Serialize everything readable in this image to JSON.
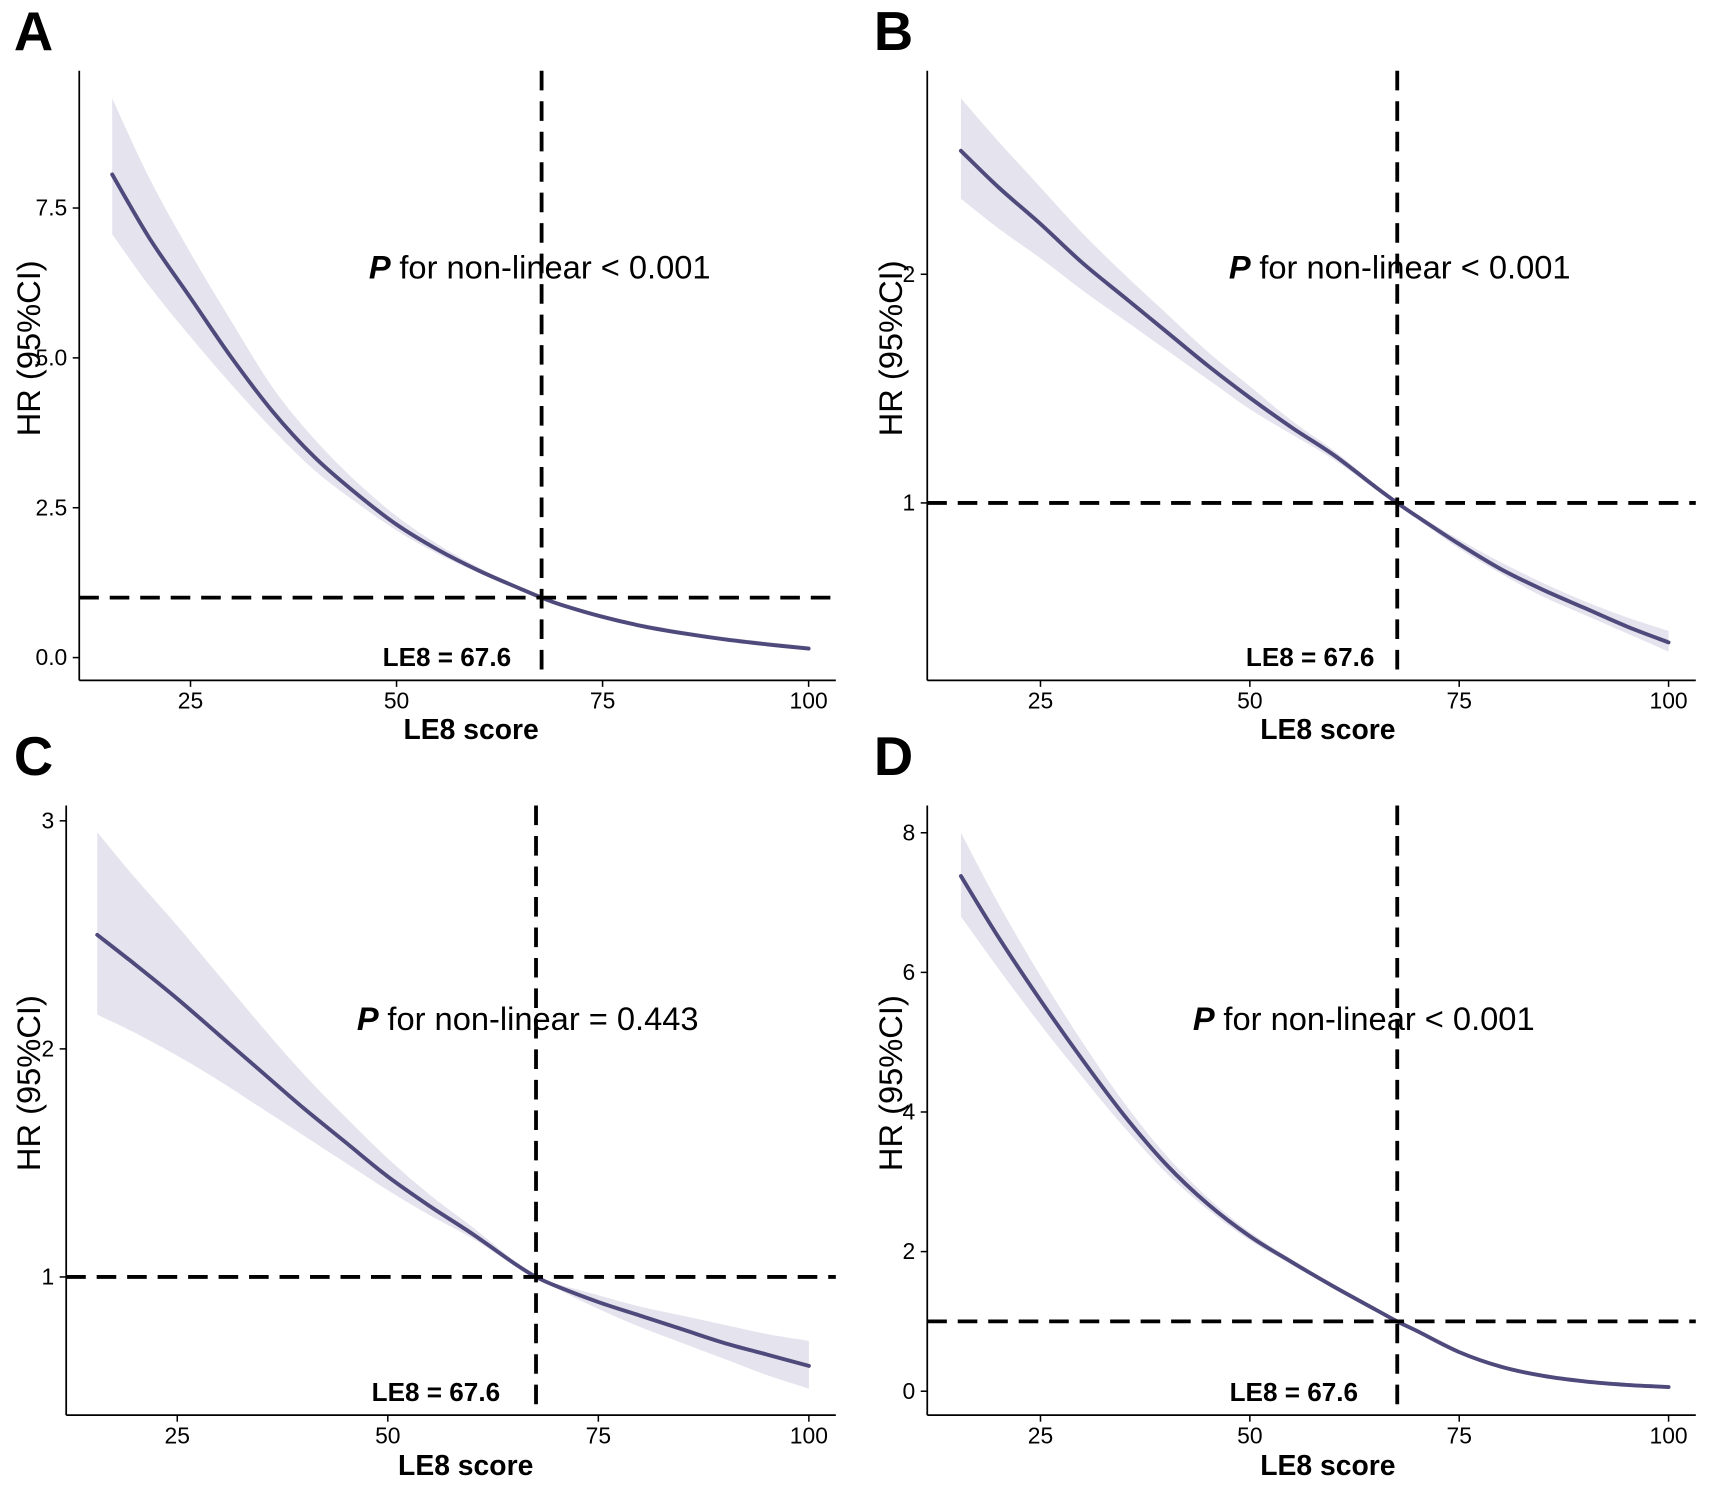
{
  "chart_data": [
    {
      "panel": "A",
      "type": "line",
      "xlabel": "LE8 score",
      "ylabel": "HR (95%CI)",
      "xlim": [
        11.5,
        103.3
      ],
      "ylim": [
        -0.38,
        9.79
      ],
      "xticks": [
        25,
        50,
        75,
        100
      ],
      "xtick_labels": [
        "25",
        "50",
        "75",
        "100"
      ],
      "yticks": [
        0,
        2.5,
        5,
        7.5
      ],
      "ytick_labels": [
        "0.0",
        "2.5",
        "5.0",
        "7.5"
      ],
      "reference": {
        "x": 67.6,
        "y": 1
      },
      "annotation": {
        "p_symbol": "P",
        "p_text": "for non-linear < 0.001",
        "cutoff_label": "LE8 = 67.6"
      },
      "series": [
        {
          "name": "HR",
          "color": "#4f4a7c",
          "band_color": "#e5e3ed",
          "x": [
            15.5,
            20,
            25,
            30,
            35,
            40,
            45,
            50,
            55,
            60,
            65,
            67.6,
            70,
            75,
            80,
            85,
            90,
            95,
            100
          ],
          "y": [
            8.06,
            7.0,
            6.0,
            5.0,
            4.1,
            3.35,
            2.75,
            2.22,
            1.8,
            1.45,
            1.15,
            1.0,
            0.88,
            0.68,
            0.52,
            0.4,
            0.3,
            0.22,
            0.15
          ],
          "lower": [
            7.06,
            6.2,
            5.35,
            4.55,
            3.8,
            3.13,
            2.6,
            2.12,
            1.73,
            1.41,
            1.13,
            1.0,
            0.86,
            0.65,
            0.49,
            0.37,
            0.27,
            0.19,
            0.12
          ],
          "upper": [
            9.33,
            8.0,
            6.75,
            5.6,
            4.5,
            3.65,
            2.95,
            2.36,
            1.89,
            1.5,
            1.17,
            1.0,
            0.9,
            0.71,
            0.56,
            0.44,
            0.34,
            0.26,
            0.19
          ]
        }
      ]
    },
    {
      "panel": "B",
      "type": "line",
      "xlabel": "LE8 score",
      "ylabel": "HR (95%CI)",
      "xlim": [
        11.48,
        103.25
      ],
      "ylim": [
        0.224,
        2.89
      ],
      "xticks": [
        25,
        50,
        75,
        100
      ],
      "xtick_labels": [
        "25",
        "50",
        "75",
        "100"
      ],
      "yticks": [
        1,
        2
      ],
      "ytick_labels": [
        "1",
        "2"
      ],
      "reference": {
        "x": 67.6,
        "y": 1
      },
      "annotation": {
        "p_symbol": "P",
        "p_text": "for non-linear < 0.001",
        "cutoff_label": "LE8 = 67.6"
      },
      "series": [
        {
          "name": "HR",
          "color": "#4f4a7c",
          "band_color": "#e5e3ed",
          "x": [
            15.5,
            20,
            25,
            30,
            35,
            40,
            45,
            50,
            55,
            60,
            65,
            67.6,
            70,
            75,
            80,
            85,
            90,
            95,
            100
          ],
          "y": [
            2.54,
            2.38,
            2.22,
            2.05,
            1.9,
            1.75,
            1.6,
            1.46,
            1.33,
            1.21,
            1.07,
            1.0,
            0.94,
            0.82,
            0.71,
            0.62,
            0.54,
            0.46,
            0.39
          ],
          "lower": [
            2.33,
            2.2,
            2.07,
            1.93,
            1.8,
            1.67,
            1.54,
            1.41,
            1.3,
            1.19,
            1.06,
            1.0,
            0.93,
            0.8,
            0.69,
            0.59,
            0.51,
            0.43,
            0.35
          ],
          "upper": [
            2.77,
            2.58,
            2.38,
            2.18,
            2.0,
            1.83,
            1.66,
            1.51,
            1.36,
            1.23,
            1.08,
            1.0,
            0.95,
            0.84,
            0.74,
            0.65,
            0.57,
            0.5,
            0.44
          ]
        }
      ]
    },
    {
      "panel": "C",
      "type": "line",
      "xlabel": "LE8 score",
      "ylabel": "HR (95%CI)",
      "xlim": [
        11.81,
        103.2
      ],
      "ylim": [
        0.394,
        3.067
      ],
      "xticks": [
        25,
        50,
        75,
        100
      ],
      "xtick_labels": [
        "25",
        "50",
        "75",
        "100"
      ],
      "yticks": [
        1,
        2,
        3
      ],
      "ytick_labels": [
        "1",
        "2",
        "3"
      ],
      "reference": {
        "x": 67.6,
        "y": 1
      },
      "annotation": {
        "p_symbol": "P",
        "p_text": "for non-linear = 0.443",
        "cutoff_label": "LE8 = 67.6"
      },
      "series": [
        {
          "name": "HR",
          "color": "#4f4a7c",
          "band_color": "#e5e3ed",
          "x": [
            15.5,
            20,
            25,
            30,
            35,
            40,
            45,
            50,
            55,
            60,
            65,
            67.6,
            70,
            75,
            80,
            85,
            90,
            95,
            100
          ],
          "y": [
            2.5,
            2.37,
            2.22,
            2.06,
            1.9,
            1.74,
            1.59,
            1.44,
            1.31,
            1.19,
            1.06,
            1.0,
            0.96,
            0.89,
            0.83,
            0.77,
            0.71,
            0.66,
            0.61
          ],
          "lower": [
            2.15,
            2.07,
            1.97,
            1.86,
            1.74,
            1.62,
            1.5,
            1.38,
            1.27,
            1.17,
            1.05,
            1.0,
            0.95,
            0.86,
            0.78,
            0.71,
            0.64,
            0.57,
            0.51
          ],
          "upper": [
            2.95,
            2.75,
            2.54,
            2.32,
            2.1,
            1.89,
            1.7,
            1.52,
            1.36,
            1.22,
            1.07,
            1.0,
            0.97,
            0.92,
            0.87,
            0.83,
            0.79,
            0.75,
            0.72
          ]
        }
      ]
    },
    {
      "panel": "D",
      "type": "line",
      "xlabel": "LE8 score",
      "ylabel": "HR (95%CI)",
      "xlim": [
        11.48,
        103.25
      ],
      "ylim": [
        -0.343,
        8.39
      ],
      "xticks": [
        25,
        50,
        75,
        100
      ],
      "xtick_labels": [
        "25",
        "50",
        "75",
        "100"
      ],
      "yticks": [
        0,
        2,
        4,
        6,
        8
      ],
      "ytick_labels": [
        "0",
        "2",
        "4",
        "6",
        "8"
      ],
      "reference": {
        "x": 67.6,
        "y": 1
      },
      "annotation": {
        "p_symbol": "P",
        "p_text": "for non-linear < 0.001",
        "cutoff_label": "LE8 = 67.6"
      },
      "series": [
        {
          "name": "HR",
          "color": "#4f4a7c",
          "band_color": "#e5e3ed",
          "x": [
            15.5,
            20,
            25,
            30,
            35,
            40,
            45,
            50,
            55,
            60,
            65,
            67.6,
            70,
            75,
            80,
            85,
            90,
            95,
            100
          ],
          "y": [
            7.38,
            6.5,
            5.6,
            4.75,
            3.95,
            3.25,
            2.68,
            2.22,
            1.85,
            1.5,
            1.17,
            1.0,
            0.86,
            0.56,
            0.35,
            0.22,
            0.14,
            0.09,
            0.06
          ],
          "lower": [
            6.8,
            6.05,
            5.25,
            4.5,
            3.78,
            3.13,
            2.6,
            2.16,
            1.81,
            1.48,
            1.16,
            1.0,
            0.85,
            0.54,
            0.33,
            0.2,
            0.12,
            0.07,
            0.04
          ],
          "upper": [
            8.0,
            6.98,
            5.95,
            5.0,
            4.13,
            3.38,
            2.77,
            2.28,
            1.89,
            1.53,
            1.18,
            1.0,
            0.88,
            0.59,
            0.38,
            0.25,
            0.17,
            0.12,
            0.09
          ]
        }
      ]
    }
  ]
}
